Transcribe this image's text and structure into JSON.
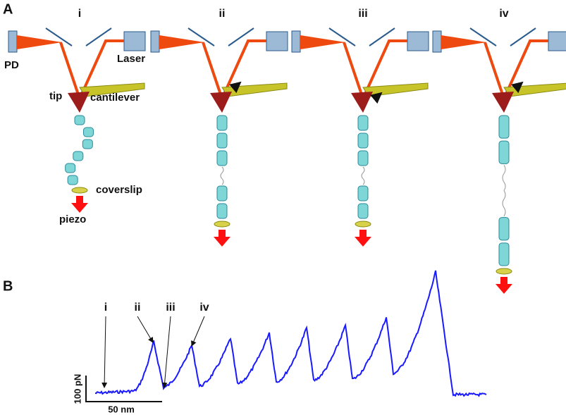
{
  "panel_a": {
    "label": "A",
    "stages": [
      "i",
      "ii",
      "iii",
      "iv"
    ],
    "labels": {
      "pd": "PD",
      "laser": "Laser",
      "tip": "tip",
      "cantilever": "cantilever",
      "coverslip": "coverslip",
      "piezo": "piezo"
    }
  },
  "panel_b": {
    "label": "B",
    "markers": [
      "i",
      "ii",
      "iii",
      "iv"
    ],
    "scale_y": "100 pN",
    "scale_x": "50 nm"
  }
}
